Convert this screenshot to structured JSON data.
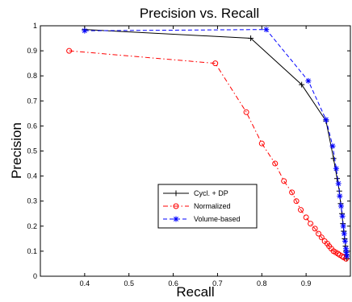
{
  "chart_data": {
    "type": "line",
    "title": "Precision vs. Recall",
    "xlabel": "Recall",
    "ylabel": "Precision",
    "xlim": [
      0.3,
      1.0
    ],
    "ylim": [
      0,
      1
    ],
    "xticks": [
      "0.4",
      "0.5",
      "0.6",
      "0.7",
      "0.8",
      "0.9"
    ],
    "yticks": [
      "0",
      "0.1",
      "0.2",
      "0.3",
      "0.4",
      "0.5",
      "0.6",
      "0.7",
      "0.8",
      "0.9",
      "1"
    ],
    "grid": false,
    "legend_position": "center-right",
    "series": [
      {
        "name": "Cycl. + DP",
        "color": "#000000",
        "dash": "solid",
        "marker": "plus",
        "x": [
          0.4,
          0.775,
          0.89,
          0.945,
          0.962,
          0.97,
          0.975,
          0.978,
          0.981,
          0.983,
          0.985,
          0.987,
          0.989,
          0.99,
          0.991,
          0.992
        ],
        "y": [
          0.985,
          0.95,
          0.765,
          0.62,
          0.47,
          0.39,
          0.34,
          0.29,
          0.25,
          0.21,
          0.18,
          0.15,
          0.12,
          0.1,
          0.085,
          0.07
        ]
      },
      {
        "name": "Normalized",
        "color": "#ff0000",
        "dash": "dashdot",
        "marker": "circle",
        "x": [
          0.365,
          0.695,
          0.765,
          0.8,
          0.83,
          0.85,
          0.868,
          0.878,
          0.888,
          0.9,
          0.91,
          0.92,
          0.928,
          0.935,
          0.942,
          0.948,
          0.952,
          0.957,
          0.962,
          0.967,
          0.972,
          0.976,
          0.981,
          0.985,
          0.99
        ],
        "y": [
          0.9,
          0.85,
          0.655,
          0.53,
          0.45,
          0.38,
          0.335,
          0.3,
          0.265,
          0.235,
          0.21,
          0.19,
          0.17,
          0.155,
          0.14,
          0.13,
          0.12,
          0.11,
          0.1,
          0.095,
          0.09,
          0.085,
          0.08,
          0.075,
          0.07
        ]
      },
      {
        "name": "Volume-based",
        "color": "#0000ff",
        "dash": "dashed",
        "marker": "star",
        "x": [
          0.4,
          0.81,
          0.905,
          0.945,
          0.96,
          0.968,
          0.973,
          0.976,
          0.979,
          0.982,
          0.984,
          0.986,
          0.988,
          0.99,
          0.991,
          0.992
        ],
        "y": [
          0.98,
          0.985,
          0.78,
          0.625,
          0.52,
          0.43,
          0.37,
          0.32,
          0.28,
          0.24,
          0.2,
          0.17,
          0.14,
          0.11,
          0.095,
          0.08
        ]
      }
    ]
  }
}
